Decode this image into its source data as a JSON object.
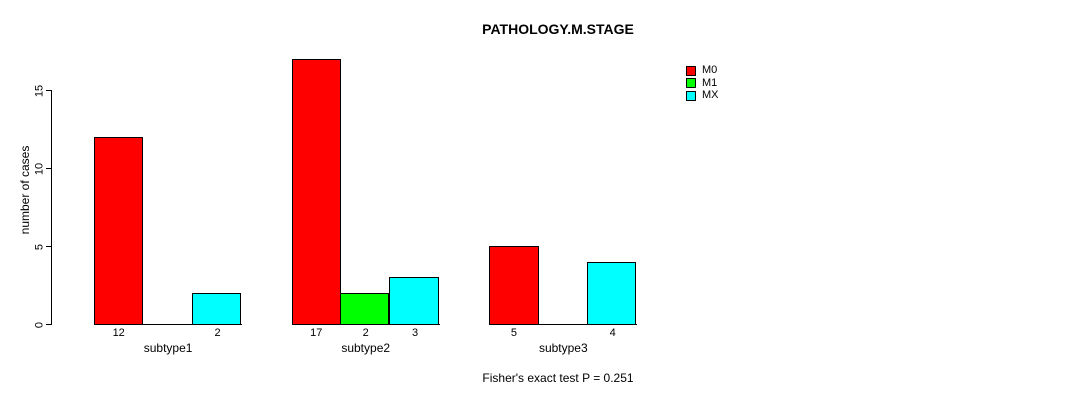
{
  "chart_data": {
    "type": "bar",
    "layout": "grouped",
    "title": "PATHOLOGY.M.STAGE",
    "xlabel": "",
    "ylabel": "number of cases",
    "categories": [
      "subtype1",
      "subtype2",
      "subtype3"
    ],
    "series": [
      {
        "name": "M0",
        "color": "#ff0000",
        "values": [
          12,
          17,
          5
        ]
      },
      {
        "name": "M1",
        "color": "#00ff00",
        "values": [
          0,
          2,
          0
        ]
      },
      {
        "name": "MX",
        "color": "#00ffff",
        "values": [
          2,
          3,
          4
        ]
      }
    ],
    "yticks": [
      0,
      5,
      10,
      15
    ],
    "ylim": [
      0,
      17
    ],
    "grid": false,
    "legend_position": "top-right",
    "legend_entries": [
      "M0",
      "M1",
      "MX"
    ],
    "bar_value_labels_visible": true,
    "zero_bars_unlabeled": true,
    "annotation": "Fisher's exact test P = 0.251"
  },
  "colors": {
    "M0": "#ff0000",
    "M1": "#00ff00",
    "MX": "#00ffff",
    "axis": "#000000",
    "text": "#000000",
    "background": "#ffffff"
  }
}
